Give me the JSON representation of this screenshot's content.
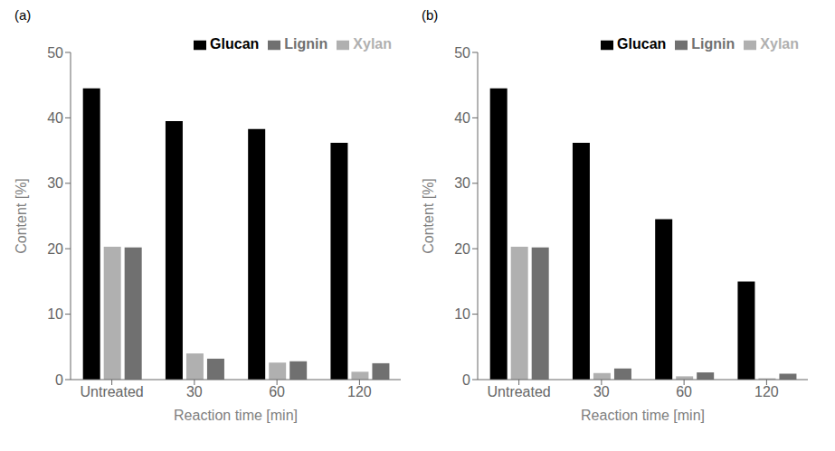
{
  "chart_data": [
    {
      "type": "bar",
      "title": "(a)",
      "categories": [
        "Untreated",
        "30",
        "60",
        "120"
      ],
      "series": [
        {
          "name": "Glucan",
          "color": "#000000",
          "values": [
            44.5,
            39.5,
            38.3,
            36.2
          ]
        },
        {
          "name": "Xylan",
          "color": "#b0b0b0",
          "values": [
            20.3,
            4.0,
            2.6,
            1.2
          ]
        },
        {
          "name": "Lignin",
          "color": "#707070",
          "values": [
            20.2,
            3.2,
            2.8,
            2.5
          ]
        }
      ],
      "xlabel": "Reaction time [min]",
      "ylabel": "Content [%]",
      "ylim": [
        0,
        50
      ],
      "yticks": [
        0,
        10,
        20,
        30,
        40,
        50
      ],
      "grid": false,
      "legend": "upper right"
    },
    {
      "type": "bar",
      "title": "(b)",
      "categories": [
        "Untreated",
        "30",
        "60",
        "120"
      ],
      "series": [
        {
          "name": "Glucan",
          "color": "#000000",
          "values": [
            44.5,
            36.2,
            24.5,
            15.0
          ]
        },
        {
          "name": "Xylan",
          "color": "#b0b0b0",
          "values": [
            20.3,
            1.0,
            0.5,
            0.2
          ]
        },
        {
          "name": "Lignin",
          "color": "#707070",
          "values": [
            20.2,
            1.7,
            1.1,
            0.9
          ]
        }
      ],
      "xlabel": "Reaction time [min]",
      "ylabel": "Content [%]",
      "ylim": [
        0,
        50
      ],
      "yticks": [
        0,
        10,
        20,
        30,
        40,
        50
      ],
      "grid": false,
      "legend": "upper right"
    }
  ]
}
